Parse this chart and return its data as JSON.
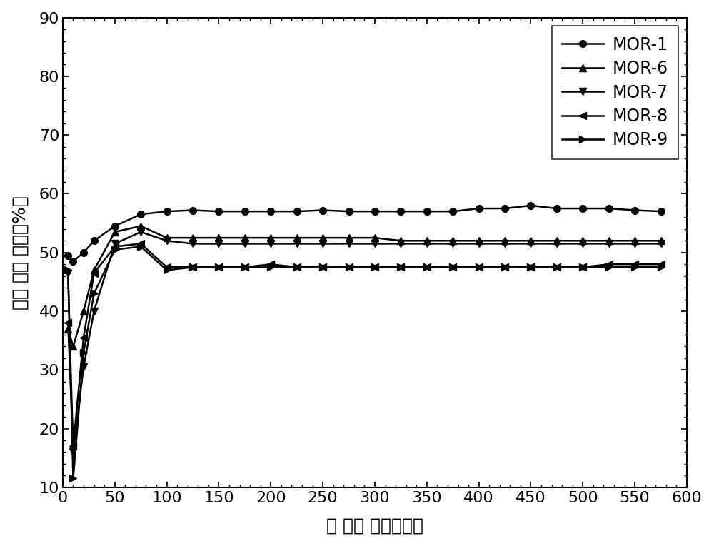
{
  "title": "",
  "xlabel": "反 应时 间（小时）",
  "ylabel": "二甲 醚转 化率（%）",
  "xlim": [
    0,
    600
  ],
  "ylim": [
    10,
    90
  ],
  "xticks": [
    0,
    50,
    100,
    150,
    200,
    250,
    300,
    350,
    400,
    450,
    500,
    550,
    600
  ],
  "yticks": [
    10,
    20,
    30,
    40,
    50,
    60,
    70,
    80,
    90
  ],
  "series": [
    {
      "name": "MOR-1",
      "marker": "o",
      "color": "#000000",
      "x": [
        5,
        10,
        20,
        30,
        50,
        75,
        100,
        125,
        150,
        175,
        200,
        225,
        250,
        275,
        300,
        325,
        350,
        375,
        400,
        425,
        450,
        475,
        500,
        525,
        550,
        575
      ],
      "y": [
        49.5,
        48.5,
        50.0,
        52.0,
        54.5,
        56.5,
        57.0,
        57.2,
        57.0,
        57.0,
        57.0,
        57.0,
        57.2,
        57.0,
        57.0,
        57.0,
        57.0,
        57.0,
        57.5,
        57.5,
        58.0,
        57.5,
        57.5,
        57.5,
        57.2,
        57.0
      ]
    },
    {
      "name": "MOR-6",
      "marker": "^",
      "color": "#000000",
      "x": [
        5,
        10,
        20,
        30,
        50,
        75,
        100,
        125,
        150,
        175,
        200,
        225,
        250,
        275,
        300,
        325,
        350,
        375,
        400,
        425,
        450,
        475,
        500,
        525,
        550,
        575
      ],
      "y": [
        37.0,
        34.0,
        40.0,
        47.0,
        53.5,
        54.5,
        52.5,
        52.5,
        52.5,
        52.5,
        52.5,
        52.5,
        52.5,
        52.5,
        52.5,
        52.0,
        52.0,
        52.0,
        52.0,
        52.0,
        52.0,
        52.0,
        52.0,
        52.0,
        52.0,
        52.0
      ]
    },
    {
      "name": "MOR-7",
      "marker": "v",
      "color": "#000000",
      "x": [
        5,
        10,
        20,
        30,
        50,
        75,
        100,
        125,
        150,
        175,
        200,
        225,
        250,
        275,
        300,
        325,
        350,
        375,
        400,
        425,
        450,
        475,
        500,
        525,
        550,
        575
      ],
      "y": [
        46.5,
        16.0,
        30.5,
        40.0,
        51.5,
        53.5,
        52.0,
        51.5,
        51.5,
        51.5,
        51.5,
        51.5,
        51.5,
        51.5,
        51.5,
        51.5,
        51.5,
        51.5,
        51.5,
        51.5,
        51.5,
        51.5,
        51.5,
        51.5,
        51.5,
        51.5
      ]
    },
    {
      "name": "MOR-8",
      "marker": "<",
      "color": "#000000",
      "x": [
        5,
        10,
        20,
        30,
        50,
        75,
        100,
        125,
        150,
        175,
        200,
        225,
        250,
        275,
        300,
        325,
        350,
        375,
        400,
        425,
        450,
        475,
        500,
        525,
        550,
        575
      ],
      "y": [
        38.0,
        17.0,
        35.5,
        46.5,
        51.0,
        51.5,
        47.5,
        47.5,
        47.5,
        47.5,
        48.0,
        47.5,
        47.5,
        47.5,
        47.5,
        47.5,
        47.5,
        47.5,
        47.5,
        47.5,
        47.5,
        47.5,
        47.5,
        48.0,
        48.0,
        48.0
      ]
    },
    {
      "name": "MOR-9",
      "marker": ">",
      "color": "#000000",
      "x": [
        5,
        10,
        20,
        30,
        50,
        75,
        100,
        125,
        150,
        175,
        200,
        225,
        250,
        275,
        300,
        325,
        350,
        375,
        400,
        425,
        450,
        475,
        500,
        525,
        550,
        575
      ],
      "y": [
        47.0,
        11.5,
        33.0,
        43.0,
        50.5,
        51.0,
        47.0,
        47.5,
        47.5,
        47.5,
        47.5,
        47.5,
        47.5,
        47.5,
        47.5,
        47.5,
        47.5,
        47.5,
        47.5,
        47.5,
        47.5,
        47.5,
        47.5,
        47.5,
        47.5,
        47.5
      ]
    }
  ],
  "legend_loc": "upper right",
  "markersize": 7,
  "linewidth": 1.8,
  "font_size": 18,
  "tick_font_size": 16,
  "legend_font_size": 17
}
